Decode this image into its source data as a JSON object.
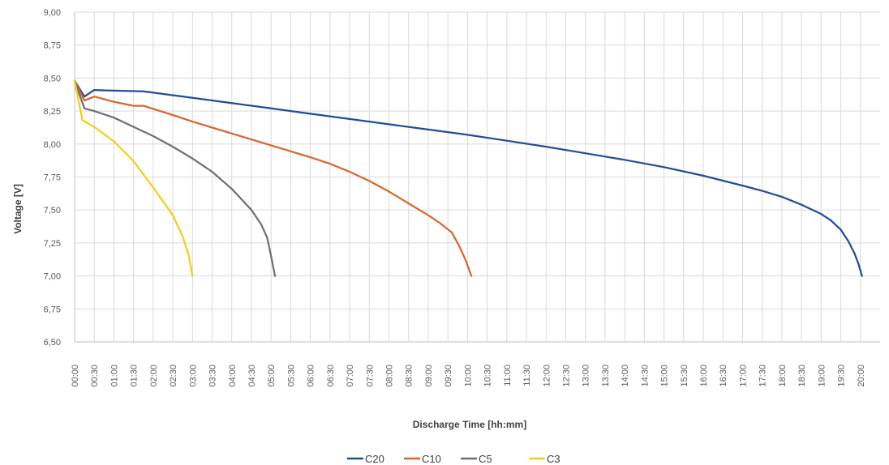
{
  "chart_data": {
    "type": "line",
    "xlabel": "Discharge Time [hh:mm]",
    "ylabel": "Voltage [V]",
    "xlim": [
      0,
      20.5
    ],
    "ylim": [
      6.5,
      9.0
    ],
    "x_ticks": [
      {
        "value": 0.0,
        "label": "00:00"
      },
      {
        "value": 0.5,
        "label": "00:30"
      },
      {
        "value": 1.0,
        "label": "01:00"
      },
      {
        "value": 1.5,
        "label": "01:30"
      },
      {
        "value": 2.0,
        "label": "02:00"
      },
      {
        "value": 2.5,
        "label": "02:30"
      },
      {
        "value": 3.0,
        "label": "03:00"
      },
      {
        "value": 3.5,
        "label": "03:30"
      },
      {
        "value": 4.0,
        "label": "04:00"
      },
      {
        "value": 4.5,
        "label": "04:30"
      },
      {
        "value": 5.0,
        "label": "05:00"
      },
      {
        "value": 5.5,
        "label": "05:30"
      },
      {
        "value": 6.0,
        "label": "06:00"
      },
      {
        "value": 6.5,
        "label": "06:30"
      },
      {
        "value": 7.0,
        "label": "07:00"
      },
      {
        "value": 7.5,
        "label": "07:30"
      },
      {
        "value": 8.0,
        "label": "08:00"
      },
      {
        "value": 8.5,
        "label": "08:30"
      },
      {
        "value": 9.0,
        "label": "09:00"
      },
      {
        "value": 9.5,
        "label": "09:30"
      },
      {
        "value": 10.0,
        "label": "10:00"
      },
      {
        "value": 10.5,
        "label": "10:30"
      },
      {
        "value": 11.0,
        "label": "11:00"
      },
      {
        "value": 11.5,
        "label": "11:30"
      },
      {
        "value": 12.0,
        "label": "12:00"
      },
      {
        "value": 12.5,
        "label": "12:30"
      },
      {
        "value": 13.0,
        "label": "13:00"
      },
      {
        "value": 13.5,
        "label": "13:30"
      },
      {
        "value": 14.0,
        "label": "14:00"
      },
      {
        "value": 14.5,
        "label": "14:30"
      },
      {
        "value": 15.0,
        "label": "15:00"
      },
      {
        "value": 15.5,
        "label": "15:30"
      },
      {
        "value": 16.0,
        "label": "16:00"
      },
      {
        "value": 16.5,
        "label": "16:30"
      },
      {
        "value": 17.0,
        "label": "17:00"
      },
      {
        "value": 17.5,
        "label": "17:30"
      },
      {
        "value": 18.0,
        "label": "18:00"
      },
      {
        "value": 18.5,
        "label": "18:30"
      },
      {
        "value": 19.0,
        "label": "19:00"
      },
      {
        "value": 19.5,
        "label": "19:30"
      },
      {
        "value": 20.0,
        "label": "20:00"
      }
    ],
    "y_ticks": [
      {
        "value": 9.0,
        "label": "9,00"
      },
      {
        "value": 8.75,
        "label": "8,75"
      },
      {
        "value": 8.5,
        "label": "8,50"
      },
      {
        "value": 8.25,
        "label": "8,25"
      },
      {
        "value": 8.0,
        "label": "8,00"
      },
      {
        "value": 7.75,
        "label": "7,75"
      },
      {
        "value": 7.5,
        "label": "7,50"
      },
      {
        "value": 7.25,
        "label": "7,25"
      },
      {
        "value": 7.0,
        "label": "7,00"
      },
      {
        "value": 6.75,
        "label": "6,75"
      },
      {
        "value": 6.5,
        "label": "6,50"
      }
    ],
    "grid": true,
    "legend_position": "bottom-center",
    "series": [
      {
        "name": "C20",
        "color": "#1f4e99",
        "x": [
          0.0,
          0.25,
          0.5,
          1.0,
          1.75,
          3.0,
          4.0,
          5.0,
          6.0,
          7.0,
          8.0,
          9.0,
          10.0,
          11.0,
          12.0,
          13.0,
          14.0,
          15.0,
          16.0,
          17.0,
          17.5,
          18.0,
          18.5,
          19.0,
          19.25,
          19.5,
          19.7,
          19.85,
          19.95,
          20.04
        ],
        "y": [
          8.48,
          8.36,
          8.41,
          8.405,
          8.4,
          8.35,
          8.31,
          8.27,
          8.23,
          8.19,
          8.15,
          8.11,
          8.07,
          8.025,
          7.98,
          7.93,
          7.88,
          7.825,
          7.76,
          7.685,
          7.645,
          7.6,
          7.54,
          7.47,
          7.42,
          7.35,
          7.26,
          7.17,
          7.09,
          7.0
        ]
      },
      {
        "name": "C10",
        "color": "#d9662b",
        "x": [
          0.0,
          0.25,
          0.5,
          1.0,
          1.5,
          1.75,
          2.5,
          3.0,
          4.0,
          5.0,
          6.0,
          6.5,
          7.0,
          7.5,
          8.0,
          8.5,
          9.0,
          9.3,
          9.6,
          9.8,
          9.95,
          10.1
        ],
        "y": [
          8.48,
          8.33,
          8.36,
          8.32,
          8.29,
          8.29,
          8.22,
          8.17,
          8.08,
          7.99,
          7.9,
          7.85,
          7.79,
          7.72,
          7.64,
          7.55,
          7.46,
          7.4,
          7.33,
          7.22,
          7.12,
          7.0
        ]
      },
      {
        "name": "C5",
        "color": "#707070",
        "x": [
          0.0,
          0.25,
          0.5,
          1.0,
          1.5,
          2.0,
          2.5,
          3.0,
          3.5,
          4.0,
          4.5,
          4.75,
          4.9,
          5.0,
          5.1
        ],
        "y": [
          8.48,
          8.27,
          8.25,
          8.2,
          8.13,
          8.06,
          7.98,
          7.89,
          7.79,
          7.66,
          7.5,
          7.39,
          7.29,
          7.15,
          7.0
        ]
      },
      {
        "name": "C3",
        "color": "#f5cc17",
        "x": [
          0.0,
          0.2,
          0.5,
          1.0,
          1.5,
          2.0,
          2.5,
          2.75,
          2.9,
          3.0
        ],
        "y": [
          8.48,
          8.18,
          8.13,
          8.02,
          7.87,
          7.67,
          7.46,
          7.3,
          7.16,
          7.0
        ]
      }
    ]
  }
}
